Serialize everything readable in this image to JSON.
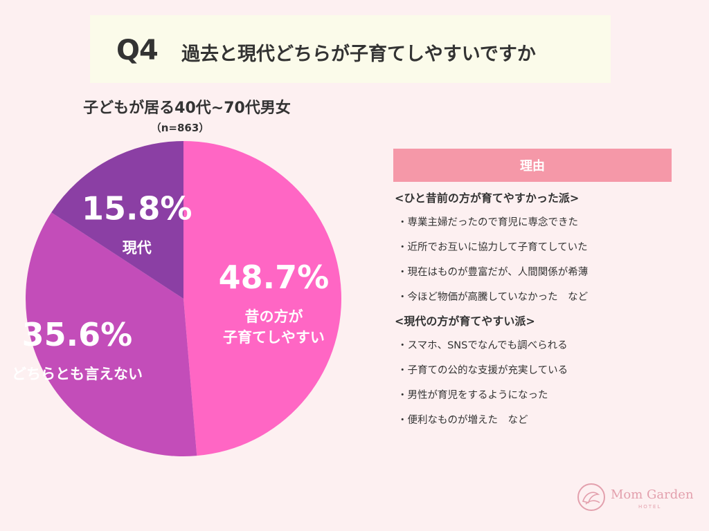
{
  "header": {
    "q_number": "Q4",
    "question": "過去と現代どちらが子育てしやすいですか"
  },
  "chart_data": {
    "type": "pie",
    "title": "子どもが居る40代~70代男女",
    "subtitle": "（n=863）",
    "slices": [
      {
        "label_lines": [
          "昔の方が",
          "子育てしやすい"
        ],
        "value": 48.7,
        "display": "48.7%",
        "color": "#ff66c4"
      },
      {
        "label_lines": [
          "どちらとも言えない"
        ],
        "value": 35.6,
        "display": "35.6%",
        "color": "#c34db9"
      },
      {
        "label_lines": [
          "現代"
        ],
        "value": 15.8,
        "display": "15.8%",
        "color": "#8b3fa4"
      }
    ]
  },
  "reasons": {
    "header": "理由",
    "groups": [
      {
        "title": "<ひと昔前の方が育てやすかった派>",
        "items": [
          "・専業主婦だったので育児に専念できた",
          "・近所でお互いに協力して子育てしていた",
          "・現在はものが豊富だが、人間関係が希薄",
          "・今ほど物価が高騰していなかった　など"
        ]
      },
      {
        "title": "<現代の方が育てやすい派>",
        "items": [
          "・スマホ、SNSでなんでも調べられる",
          "・子育ての公的な支援が充実している",
          "・男性が育児をするようになった",
          "・便利なものが増えた　など"
        ]
      }
    ]
  },
  "logo": {
    "name": "Mom Garden",
    "sub": "HOTEL",
    "color": "#e3a0ad"
  }
}
